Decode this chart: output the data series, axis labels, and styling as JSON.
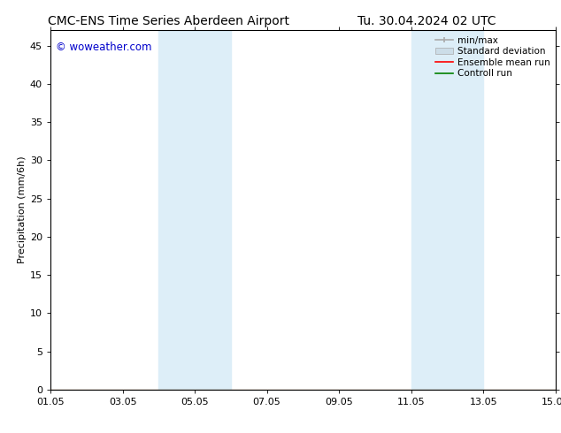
{
  "title_left": "CMC-ENS Time Series Aberdeen Airport",
  "title_right": "Tu. 30.04.2024 02 UTC",
  "ylabel": "Precipitation (mm/6h)",
  "watermark": "© woweather.com",
  "watermark_color": "#0000cc",
  "xlim_start": 0.0,
  "xlim_end": 14.0,
  "ylim": [
    0,
    47
  ],
  "yticks": [
    0,
    5,
    10,
    15,
    20,
    25,
    30,
    35,
    40,
    45
  ],
  "xtick_positions": [
    0,
    2,
    4,
    6,
    8,
    10,
    12,
    14
  ],
  "xtick_labels": [
    "01.05",
    "03.05",
    "05.05",
    "07.05",
    "09.05",
    "11.05",
    "13.05",
    "15.05"
  ],
  "shaded_regions": [
    {
      "xmin": 3.0,
      "xmax": 5.0
    },
    {
      "xmin": 10.0,
      "xmax": 12.0
    }
  ],
  "shaded_color": "#ddeef8",
  "legend_items": [
    {
      "label": "min/max",
      "color": "#aaaaaa",
      "linewidth": 1.2
    },
    {
      "label": "Standard deviation",
      "color": "#ccdde8",
      "linewidth": 5
    },
    {
      "label": "Ensemble mean run",
      "color": "red",
      "linewidth": 1.2
    },
    {
      "label": "Controll run",
      "color": "green",
      "linewidth": 1.2
    }
  ],
  "background_color": "#ffffff",
  "grid_color": "#dddddd",
  "title_fontsize": 10,
  "tick_fontsize": 8,
  "ylabel_fontsize": 8,
  "legend_fontsize": 7.5
}
